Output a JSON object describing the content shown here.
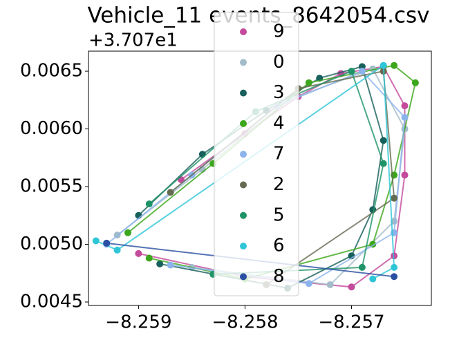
{
  "chart_data": {
    "type": "scatter",
    "title": "Vehicle_11 events_8642054.csv",
    "y_offset_label": "+3.707e1",
    "xlim": [
      -8.25947,
      -8.25625
    ],
    "ylim": [
      0.00447,
      0.006674
    ],
    "xticks": [
      {
        "value": -8.259,
        "label": "−8.259"
      },
      {
        "value": -8.258,
        "label": "−8.258"
      },
      {
        "value": -8.257,
        "label": "−8.257"
      }
    ],
    "yticks": [
      0.0045,
      {
        "value": 0.005,
        "label": "0.0050"
      },
      0.0055,
      {
        "value": 0.006,
        "label": "0.0060"
      },
      0.0065
    ],
    "legend": "upper center",
    "series": [
      {
        "name": "9",
        "color": "#c44a9c",
        "x": [
          -8.2586,
          -8.258,
          -8.2575,
          -8.2571,
          -8.2567,
          -8.2565,
          -8.2565,
          -8.2566,
          -8.257,
          -8.258,
          -8.259
        ],
        "y": [
          0.00556,
          0.00596,
          0.00628,
          0.00648,
          0.00654,
          0.0062,
          0.0056,
          0.0049,
          0.00463,
          0.00472,
          0.00492
        ]
      },
      {
        "name": "0",
        "color": "#a3bcc9",
        "x": [
          -8.2592,
          -8.2584,
          -8.2576,
          -8.2568,
          -8.2565,
          -8.2566,
          -8.2572,
          -8.2585
        ],
        "y": [
          0.00508,
          0.00565,
          0.00625,
          0.00652,
          0.006,
          0.0052,
          0.00465,
          0.0048
        ]
      },
      {
        "name": "3",
        "color": "#17605b",
        "x": [
          -8.259,
          -8.2584,
          -8.2578,
          -8.2573,
          -8.2569,
          -8.2567,
          -8.2568,
          -8.257,
          -8.2576,
          -8.2588
        ],
        "y": [
          0.00525,
          0.00578,
          0.00616,
          0.00644,
          0.00654,
          0.0059,
          0.0053,
          0.0049,
          0.00462,
          0.00483
        ]
      },
      {
        "name": "4",
        "color": "#3ca61c",
        "x": [
          -8.2591,
          -8.2583,
          -8.2574,
          -8.2566,
          -8.2564,
          -8.2566,
          -8.2568,
          -8.258,
          -8.2589
        ],
        "y": [
          0.0051,
          0.0057,
          0.0064,
          0.00655,
          0.0064,
          0.0056,
          0.005,
          0.0047,
          0.00488
        ]
      },
      {
        "name": "7",
        "color": "#8cb4ec",
        "x": [
          -8.2593,
          -8.2585,
          -8.2577,
          -8.2569,
          -8.2565,
          -8.2566,
          -8.2574,
          -8.2587
        ],
        "y": [
          0.005,
          0.0056,
          0.0062,
          0.0065,
          0.0061,
          0.0051,
          0.00466,
          0.00482
        ]
      },
      {
        "name": "2",
        "color": "#656b50",
        "x": [
          -8.2587,
          -8.2575,
          -8.2567,
          -8.2566,
          -8.2578
        ],
        "y": [
          0.00545,
          0.00635,
          0.0065,
          0.0054,
          0.00465
        ]
      },
      {
        "name": "5",
        "color": "#1e9468",
        "x": [
          -8.2589,
          -8.2579,
          -8.257,
          -8.2567,
          -8.2569,
          -8.2583
        ],
        "y": [
          0.00535,
          0.00615,
          0.0065,
          0.0057,
          0.0048,
          0.00474
        ]
      },
      {
        "name": "6",
        "color": "#2ec5d7",
        "x": [
          -8.2594,
          -8.2592,
          -8.2567,
          -8.2566,
          -8.2568
        ],
        "y": [
          0.00503,
          0.00495,
          0.00655,
          0.0048,
          0.0047
        ]
      },
      {
        "name": "8",
        "color": "#2b50a3",
        "x": [
          -8.2593,
          -8.2566
        ],
        "y": [
          0.00501,
          0.00472
        ]
      }
    ]
  }
}
